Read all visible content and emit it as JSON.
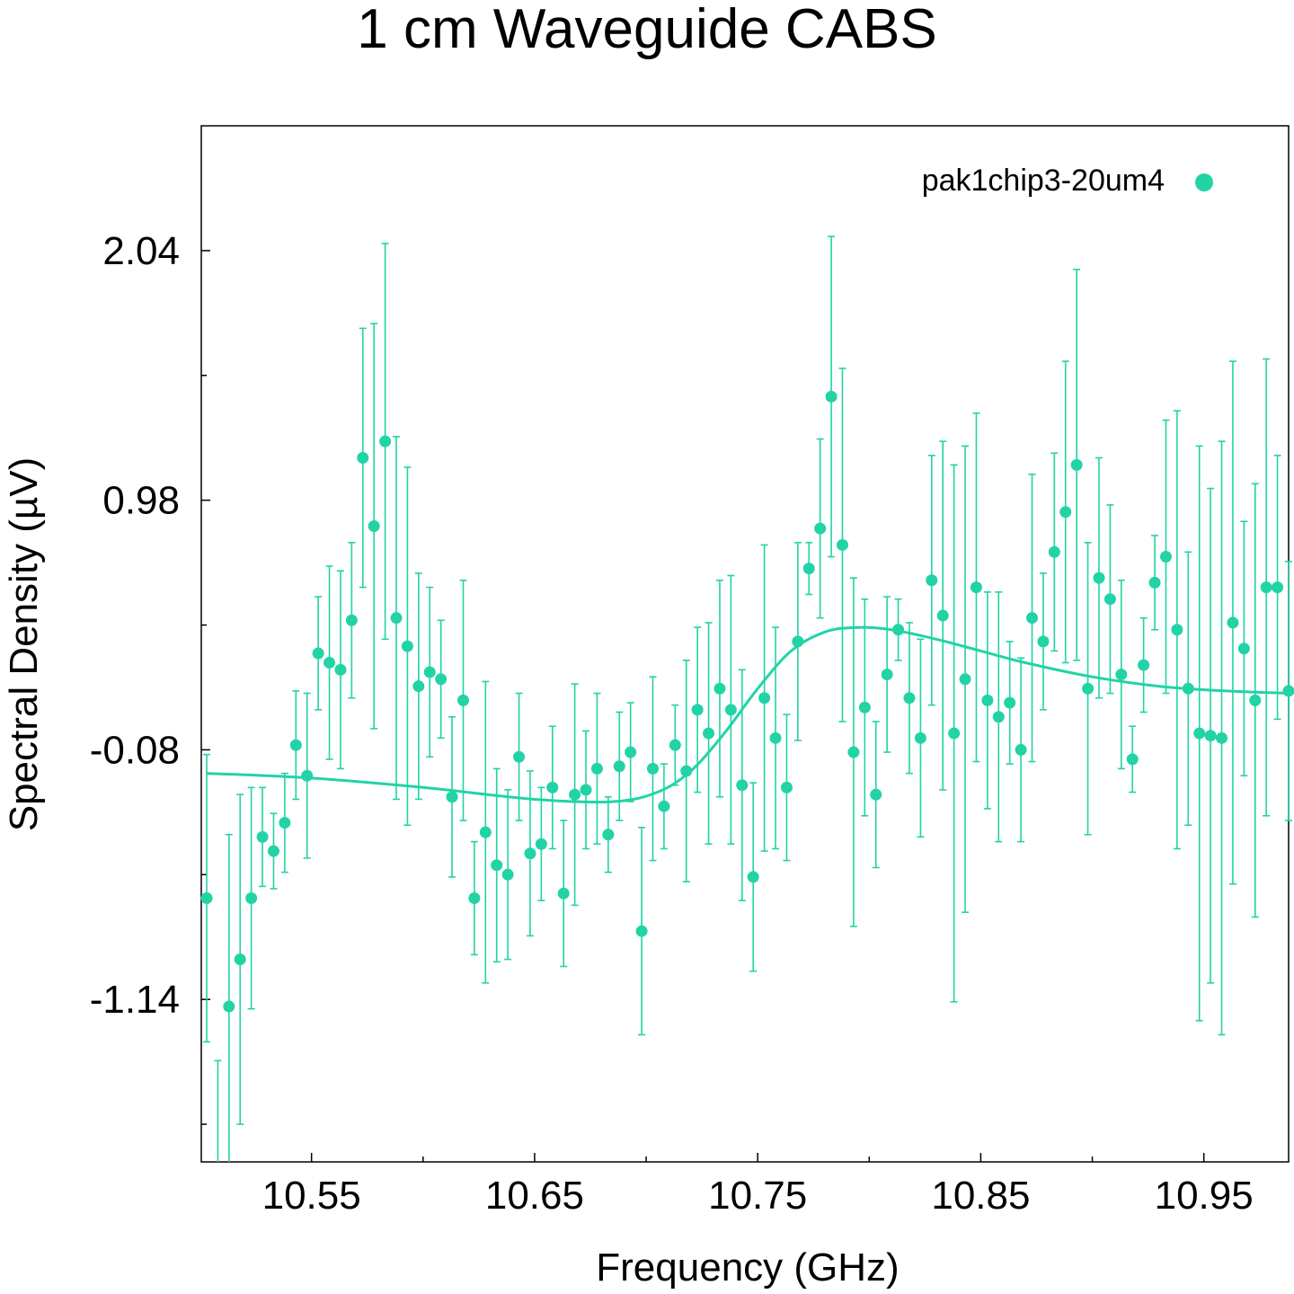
{
  "chart_data": {
    "type": "scatter",
    "title": "1 cm Waveguide CABS",
    "xlabel": "Frequency (GHz)",
    "ylabel": "Spectral Density (µV)",
    "xlim": [
      10.503,
      10.988
    ],
    "ylim": [
      -1.83,
      2.57
    ],
    "xticks": [
      "10.55",
      "10.65",
      "10.75",
      "10.85",
      "10.95"
    ],
    "yticks": [
      "2.04",
      "0.98",
      "-0.08",
      "-1.14"
    ],
    "grid": false,
    "legend_position": "top-right",
    "series_color": "#22d3a6",
    "series": [
      {
        "name": "pak1chip3-20um4",
        "marker": "circle",
        "points": [
          {
            "x": 10.503,
            "y": -0.71,
            "err": 0.61
          },
          {
            "x": 10.508,
            "y": -1.95,
            "err": 0.55
          },
          {
            "x": 10.513,
            "y": -1.17,
            "err": 0.73
          },
          {
            "x": 10.518,
            "y": -0.97,
            "err": 0.7
          },
          {
            "x": 10.523,
            "y": -0.71,
            "err": 0.47
          },
          {
            "x": 10.528,
            "y": -0.45,
            "err": 0.21
          },
          {
            "x": 10.533,
            "y": -0.51,
            "err": 0.16
          },
          {
            "x": 10.538,
            "y": -0.39,
            "err": 0.21
          },
          {
            "x": 10.543,
            "y": -0.06,
            "err": 0.23
          },
          {
            "x": 10.548,
            "y": -0.19,
            "err": 0.35
          },
          {
            "x": 10.553,
            "y": 0.33,
            "err": 0.24
          },
          {
            "x": 10.558,
            "y": 0.29,
            "err": 0.41
          },
          {
            "x": 10.563,
            "y": 0.26,
            "err": 0.42
          },
          {
            "x": 10.568,
            "y": 0.47,
            "err": 0.33
          },
          {
            "x": 10.573,
            "y": 1.16,
            "err": 0.55
          },
          {
            "x": 10.578,
            "y": 0.87,
            "err": 0.86
          },
          {
            "x": 10.583,
            "y": 1.23,
            "err": 0.84
          },
          {
            "x": 10.588,
            "y": 0.48,
            "err": 0.77
          },
          {
            "x": 10.593,
            "y": 0.36,
            "err": 0.76
          },
          {
            "x": 10.598,
            "y": 0.19,
            "err": 0.48
          },
          {
            "x": 10.603,
            "y": 0.25,
            "err": 0.36
          },
          {
            "x": 10.608,
            "y": 0.22,
            "err": 0.25
          },
          {
            "x": 10.613,
            "y": -0.28,
            "err": 0.34
          },
          {
            "x": 10.618,
            "y": 0.13,
            "err": 0.51
          },
          {
            "x": 10.623,
            "y": -0.71,
            "err": 0.24
          },
          {
            "x": 10.628,
            "y": -0.43,
            "err": 0.64
          },
          {
            "x": 10.633,
            "y": -0.57,
            "err": 0.41
          },
          {
            "x": 10.638,
            "y": -0.61,
            "err": 0.36
          },
          {
            "x": 10.643,
            "y": -0.11,
            "err": 0.27
          },
          {
            "x": 10.648,
            "y": -0.52,
            "err": 0.35
          },
          {
            "x": 10.653,
            "y": -0.48,
            "err": 0.24
          },
          {
            "x": 10.658,
            "y": -0.24,
            "err": 0.26
          },
          {
            "x": 10.663,
            "y": -0.69,
            "err": 0.31
          },
          {
            "x": 10.668,
            "y": -0.27,
            "err": 0.47
          },
          {
            "x": 10.673,
            "y": -0.25,
            "err": 0.25
          },
          {
            "x": 10.678,
            "y": -0.16,
            "err": 0.32
          },
          {
            "x": 10.683,
            "y": -0.44,
            "err": 0.16
          },
          {
            "x": 10.688,
            "y": -0.15,
            "err": 0.23
          },
          {
            "x": 10.693,
            "y": -0.09,
            "err": 0.21
          },
          {
            "x": 10.698,
            "y": -0.85,
            "err": 0.44
          },
          {
            "x": 10.703,
            "y": -0.16,
            "err": 0.39
          },
          {
            "x": 10.708,
            "y": -0.32,
            "err": 0.18
          },
          {
            "x": 10.713,
            "y": -0.06,
            "err": 0.17
          },
          {
            "x": 10.718,
            "y": -0.17,
            "err": 0.47
          },
          {
            "x": 10.723,
            "y": 0.09,
            "err": 0.35
          },
          {
            "x": 10.728,
            "y": -0.01,
            "err": 0.47
          },
          {
            "x": 10.733,
            "y": 0.18,
            "err": 0.46
          },
          {
            "x": 10.738,
            "y": 0.09,
            "err": 0.57
          },
          {
            "x": 10.743,
            "y": -0.23,
            "err": 0.49
          },
          {
            "x": 10.748,
            "y": -0.62,
            "err": 0.4
          },
          {
            "x": 10.753,
            "y": 0.14,
            "err": 0.65
          },
          {
            "x": 10.758,
            "y": -0.03,
            "err": 0.47
          },
          {
            "x": 10.763,
            "y": -0.24,
            "err": 0.31
          },
          {
            "x": 10.768,
            "y": 0.38,
            "err": 0.42
          },
          {
            "x": 10.773,
            "y": 0.69,
            "err": 0.11
          },
          {
            "x": 10.778,
            "y": 0.86,
            "err": 0.38
          },
          {
            "x": 10.783,
            "y": 1.42,
            "err": 0.68
          },
          {
            "x": 10.788,
            "y": 0.79,
            "err": 0.75
          },
          {
            "x": 10.793,
            "y": -0.09,
            "err": 0.74
          },
          {
            "x": 10.798,
            "y": 0.1,
            "err": 0.46
          },
          {
            "x": 10.803,
            "y": -0.27,
            "err": 0.31
          },
          {
            "x": 10.808,
            "y": 0.24,
            "err": 0.33
          },
          {
            "x": 10.813,
            "y": 0.43,
            "err": 0.13
          },
          {
            "x": 10.818,
            "y": 0.14,
            "err": 0.32
          },
          {
            "x": 10.823,
            "y": -0.03,
            "err": 0.42
          },
          {
            "x": 10.828,
            "y": 0.64,
            "err": 0.53
          },
          {
            "x": 10.833,
            "y": 0.49,
            "err": 0.74
          },
          {
            "x": 10.838,
            "y": -0.01,
            "err": 1.14
          },
          {
            "x": 10.843,
            "y": 0.22,
            "err": 0.99
          },
          {
            "x": 10.848,
            "y": 0.61,
            "err": 0.74
          },
          {
            "x": 10.853,
            "y": 0.13,
            "err": 0.46
          },
          {
            "x": 10.858,
            "y": 0.06,
            "err": 0.53
          },
          {
            "x": 10.863,
            "y": 0.12,
            "err": 0.26
          },
          {
            "x": 10.868,
            "y": -0.08,
            "err": 0.39
          },
          {
            "x": 10.873,
            "y": 0.48,
            "err": 0.61
          },
          {
            "x": 10.878,
            "y": 0.38,
            "err": 0.29
          },
          {
            "x": 10.883,
            "y": 0.76,
            "err": 0.42
          },
          {
            "x": 10.888,
            "y": 0.93,
            "err": 0.64
          },
          {
            "x": 10.893,
            "y": 1.13,
            "err": 0.83
          },
          {
            "x": 10.898,
            "y": 0.18,
            "err": 0.62
          },
          {
            "x": 10.903,
            "y": 0.65,
            "err": 0.51
          },
          {
            "x": 10.908,
            "y": 0.56,
            "err": 0.4
          },
          {
            "x": 10.913,
            "y": 0.24,
            "err": 0.4
          },
          {
            "x": 10.918,
            "y": -0.12,
            "err": 0.14
          },
          {
            "x": 10.923,
            "y": 0.28,
            "err": 0.2
          },
          {
            "x": 10.928,
            "y": 0.63,
            "err": 0.2
          },
          {
            "x": 10.933,
            "y": 0.74,
            "err": 0.58
          },
          {
            "x": 10.938,
            "y": 0.43,
            "err": 0.93
          },
          {
            "x": 10.943,
            "y": 0.18,
            "err": 0.58
          },
          {
            "x": 10.948,
            "y": -0.01,
            "err": 1.22
          },
          {
            "x": 10.953,
            "y": -0.02,
            "err": 1.05
          },
          {
            "x": 10.958,
            "y": -0.03,
            "err": 1.26
          },
          {
            "x": 10.963,
            "y": 0.46,
            "err": 1.11
          },
          {
            "x": 10.968,
            "y": 0.35,
            "err": 0.54
          },
          {
            "x": 10.973,
            "y": 0.13,
            "err": 0.92
          },
          {
            "x": 10.978,
            "y": 0.61,
            "err": 0.97
          },
          {
            "x": 10.983,
            "y": 0.61,
            "err": 0.56
          },
          {
            "x": 10.988,
            "y": 0.17,
            "err": 0.55
          }
        ]
      },
      {
        "type": "line",
        "curve": "fit",
        "points": [
          {
            "x": 10.503,
            "y": -0.18
          },
          {
            "x": 10.55,
            "y": -0.2
          },
          {
            "x": 10.6,
            "y": -0.24
          },
          {
            "x": 10.65,
            "y": -0.29
          },
          {
            "x": 10.685,
            "y": -0.3
          },
          {
            "x": 10.705,
            "y": -0.26
          },
          {
            "x": 10.72,
            "y": -0.17
          },
          {
            "x": 10.735,
            "y": -0.01
          },
          {
            "x": 10.75,
            "y": 0.18
          },
          {
            "x": 10.765,
            "y": 0.34
          },
          {
            "x": 10.78,
            "y": 0.42
          },
          {
            "x": 10.795,
            "y": 0.44
          },
          {
            "x": 10.81,
            "y": 0.43
          },
          {
            "x": 10.83,
            "y": 0.39
          },
          {
            "x": 10.85,
            "y": 0.34
          },
          {
            "x": 10.87,
            "y": 0.29
          },
          {
            "x": 10.9,
            "y": 0.23
          },
          {
            "x": 10.93,
            "y": 0.19
          },
          {
            "x": 10.96,
            "y": 0.17
          },
          {
            "x": 10.988,
            "y": 0.16
          }
        ]
      }
    ]
  }
}
